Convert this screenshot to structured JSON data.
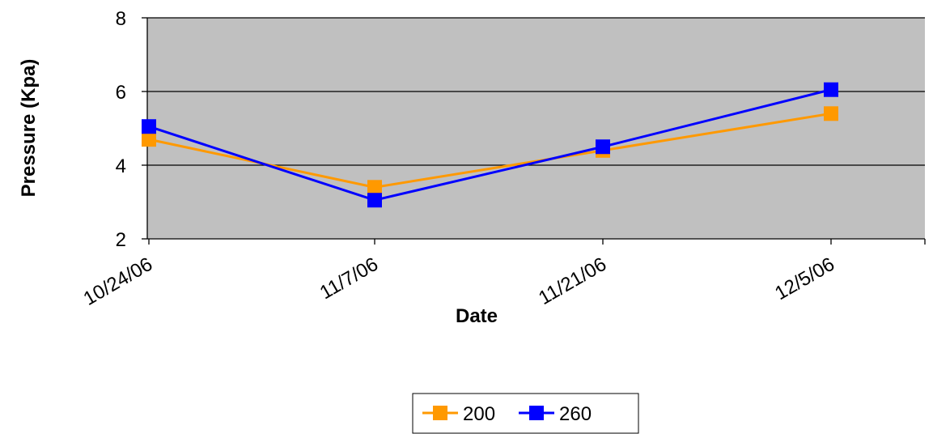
{
  "chart_data": {
    "type": "line",
    "title": "",
    "xlabel": "Date",
    "ylabel": "Pressure (Kpa)",
    "x": [
      "10/24/06",
      "11/7/06",
      "11/21/06",
      "12/5/06"
    ],
    "ylim": [
      2,
      8
    ],
    "yticks": [
      "2",
      "4",
      "6",
      "8"
    ],
    "grid": true,
    "plot_background": "#c0c0c0",
    "legend_position": "bottom",
    "series": [
      {
        "name": "200",
        "values": [
          4.7,
          3.4,
          4.4,
          5.4
        ],
        "color": "#ff9900",
        "marker": "square"
      },
      {
        "name": "260",
        "values": [
          5.05,
          3.05,
          4.5,
          6.05
        ],
        "color": "#0000ff",
        "marker": "square"
      }
    ]
  }
}
